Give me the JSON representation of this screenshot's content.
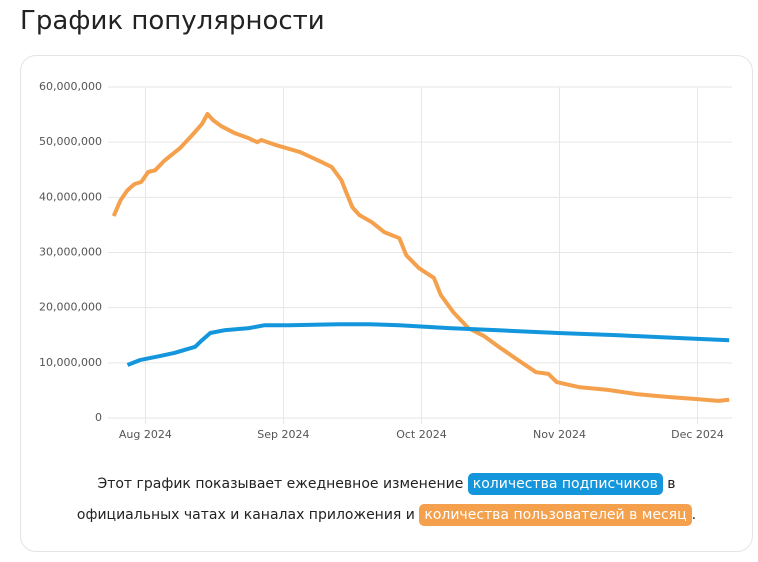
{
  "header": {
    "title": "График популярности"
  },
  "chart_data": {
    "type": "line",
    "series": [
      {
        "name": "количества подписчиков",
        "color": "#1496dc",
        "x": [
          7.87,
          7.96,
          8.1,
          8.21,
          8.36,
          8.41,
          8.47,
          8.57,
          8.75,
          8.86,
          9.04,
          9.4,
          9.62,
          9.84,
          10.2,
          10.56,
          10.99,
          11.43,
          11.86,
          12.23
        ],
        "values": [
          9600000,
          10500000,
          11200000,
          11800000,
          12900000,
          14100000,
          15400000,
          15900000,
          16300000,
          16800000,
          16800000,
          17000000,
          17000000,
          16800000,
          16300000,
          15900000,
          15400000,
          15000000,
          14500000,
          14100000
        ]
      },
      {
        "name": "количества пользователей в месяц",
        "color": "#f4a04c",
        "x": [
          7.77,
          7.82,
          7.87,
          7.92,
          7.97,
          8.02,
          8.07,
          8.14,
          8.25,
          8.34,
          8.41,
          8.45,
          8.49,
          8.55,
          8.65,
          8.75,
          8.81,
          8.84,
          8.93,
          9.12,
          9.26,
          9.35,
          9.42,
          9.46,
          9.5,
          9.55,
          9.64,
          9.73,
          9.84,
          9.89,
          9.98,
          10.09,
          10.14,
          10.23,
          10.34,
          10.45,
          10.56,
          10.7,
          10.83,
          10.92,
          10.98,
          11.14,
          11.35,
          11.57,
          11.79,
          12.01,
          12.15,
          12.23
        ],
        "values": [
          36600000,
          39500000,
          41300000,
          42400000,
          42800000,
          44600000,
          44900000,
          46700000,
          48900000,
          51300000,
          53300000,
          55100000,
          54000000,
          52900000,
          51600000,
          50700000,
          50000000,
          50400000,
          49600000,
          48200000,
          46600000,
          45500000,
          43100000,
          40600000,
          38200000,
          36800000,
          35500000,
          33700000,
          32600000,
          29500000,
          27200000,
          25400000,
          22300000,
          19200000,
          16300000,
          14900000,
          12900000,
          10500000,
          8300000,
          8000000,
          6500000,
          5600000,
          5100000,
          4300000,
          3800000,
          3400000,
          3100000,
          3300000
        ]
      }
    ],
    "xlim": [
      7.7,
      12.25
    ],
    "xticks": [
      {
        "value": 8,
        "label": "Aug 2024"
      },
      {
        "value": 9,
        "label": "Sep 2024"
      },
      {
        "value": 10,
        "label": "Oct 2024"
      },
      {
        "value": 11,
        "label": "Nov 2024"
      },
      {
        "value": 12,
        "label": "Dec 2024"
      }
    ],
    "ylim": [
      0,
      60000000
    ],
    "yticks": [
      0,
      {
        "value": 10000000,
        "label": "10,000,000"
      },
      {
        "value": 20000000,
        "label": "20,000,000"
      },
      {
        "value": 30000000,
        "label": "30,000,000"
      },
      {
        "value": 40000000,
        "label": "40,000,000"
      },
      {
        "value": 50000000,
        "label": "50,000,000"
      },
      {
        "value": 60000000,
        "label": "60,000,000"
      }
    ],
    "grid": true
  },
  "caption": {
    "before": "Этот график показывает ежедневное изменение",
    "middle": "в",
    "line2": "официальных чатах и каналах приложения и",
    "end": "."
  }
}
